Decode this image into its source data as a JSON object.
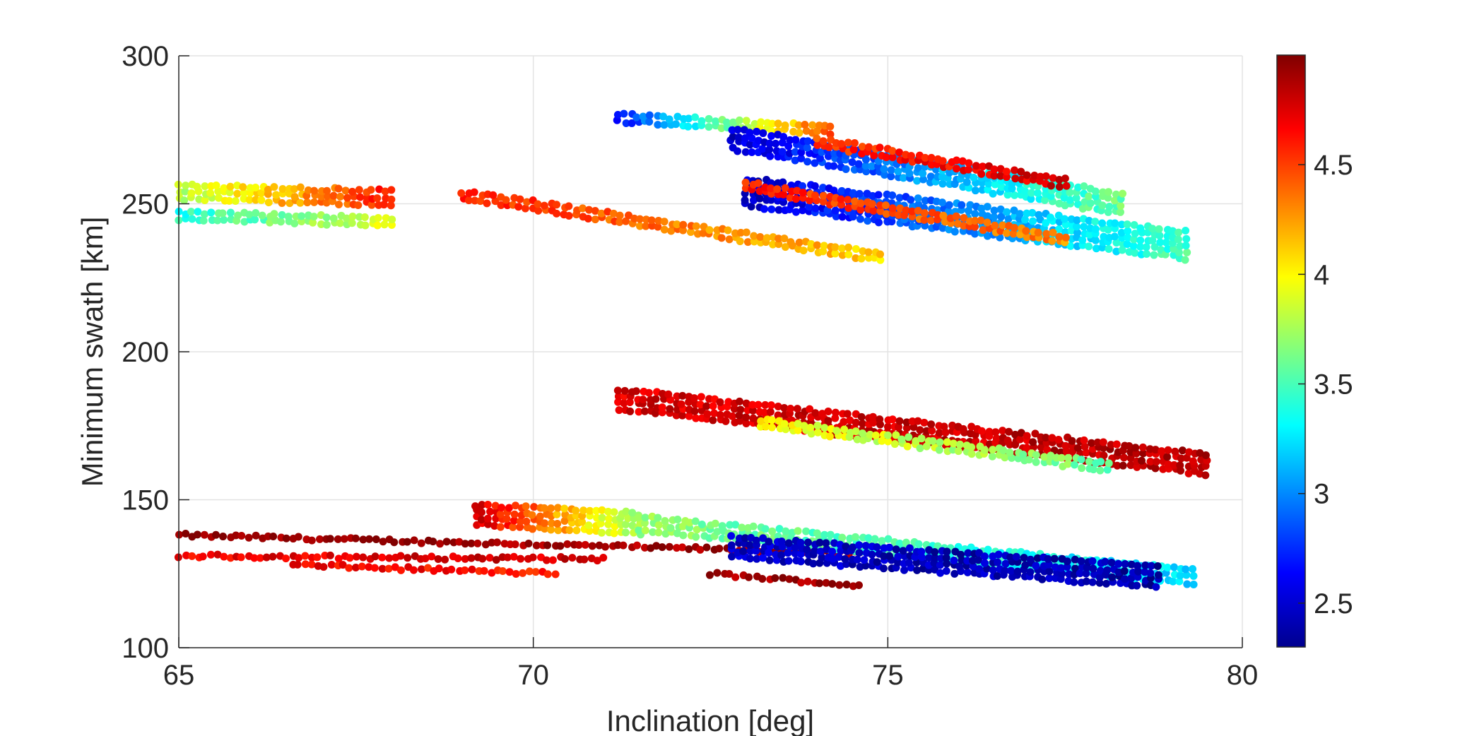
{
  "chart_data": {
    "type": "scatter",
    "title": "",
    "xlabel": "Inclination [deg]",
    "ylabel": "Minimum swath [km]",
    "xlim": [
      65,
      80
    ],
    "ylim": [
      100,
      300
    ],
    "xticks": [
      65,
      70,
      75,
      80
    ],
    "yticks": [
      100,
      150,
      200,
      250,
      300
    ],
    "grid": true,
    "colormap": "jet",
    "colorbar": {
      "range": [
        2.3,
        5.0
      ],
      "ticks": [
        2.5,
        3,
        3.5,
        4,
        4.5
      ],
      "tick_labels": [
        "2.5",
        "3",
        "3.5",
        "4",
        "4.5"
      ]
    },
    "clusters": [
      {
        "x0": 65.0,
        "x1": 74.7,
        "y0": 138,
        "y1": 132,
        "spread": 1,
        "c0": 4.95,
        "c1": 4.9,
        "note_rows": "top band"
      },
      {
        "x0": 65.0,
        "x1": 71.0,
        "y0": 131,
        "y1": 130,
        "spread": 1,
        "c0": 4.7,
        "c1": 4.8
      },
      {
        "x0": 66.6,
        "x1": 70.3,
        "y0": 128,
        "y1": 125,
        "spread": 1,
        "c0": 4.7,
        "c1": 4.6
      },
      {
        "x0": 72.5,
        "x1": 74.6,
        "y0": 125,
        "y1": 121,
        "spread": 1,
        "c0": 4.9,
        "c1": 4.95
      },
      {
        "x0": 69.2,
        "x1": 71.5,
        "y0": 145,
        "y1": 142,
        "spread": 4,
        "c0": 4.8,
        "c1": 3.7
      },
      {
        "x0": 71.5,
        "x1": 79.3,
        "y0": 142,
        "y1": 124,
        "spread": 3,
        "c0": 3.7,
        "c1": 3.2
      },
      {
        "x0": 72.8,
        "x1": 78.8,
        "y0": 134,
        "y1": 124,
        "spread": 4,
        "c0": 2.5,
        "c1": 2.4
      },
      {
        "x0": 71.2,
        "x1": 79.5,
        "y0": 184,
        "y1": 162,
        "spread": 4,
        "c0": 4.75,
        "c1": 4.85
      },
      {
        "x0": 73.2,
        "x1": 78.1,
        "y0": 176,
        "y1": 161,
        "spread": 2,
        "c0": 4.0,
        "c1": 3.6
      },
      {
        "x0": 69.0,
        "x1": 74.9,
        "y0": 253,
        "y1": 232,
        "spread": 2,
        "c0": 4.6,
        "c1": 4.1
      },
      {
        "x0": 65.0,
        "x1": 68.0,
        "y0": 254,
        "y1": 252,
        "spread": 3,
        "c0": 3.8,
        "c1": 4.6
      },
      {
        "x0": 65.0,
        "x1": 68.0,
        "y0": 246,
        "y1": 244,
        "spread": 2,
        "c0": 3.4,
        "c1": 3.9
      },
      {
        "x0": 71.2,
        "x1": 74.2,
        "y0": 279,
        "y1": 275,
        "spread": 2,
        "c0": 2.7,
        "c1": 4.5
      },
      {
        "x0": 72.8,
        "x1": 78.3,
        "y0": 272,
        "y1": 250,
        "spread": 4,
        "c0": 2.5,
        "c1": 3.6
      },
      {
        "x0": 73.0,
        "x1": 79.2,
        "y0": 254,
        "y1": 236,
        "spread": 5,
        "c0": 2.5,
        "c1": 3.5
      },
      {
        "x0": 74.0,
        "x1": 77.5,
        "y0": 271,
        "y1": 257,
        "spread": 2,
        "c0": 4.5,
        "c1": 4.8
      },
      {
        "x0": 73.0,
        "x1": 77.5,
        "y0": 256,
        "y1": 238,
        "spread": 2,
        "c0": 4.6,
        "c1": 4.3
      }
    ]
  }
}
